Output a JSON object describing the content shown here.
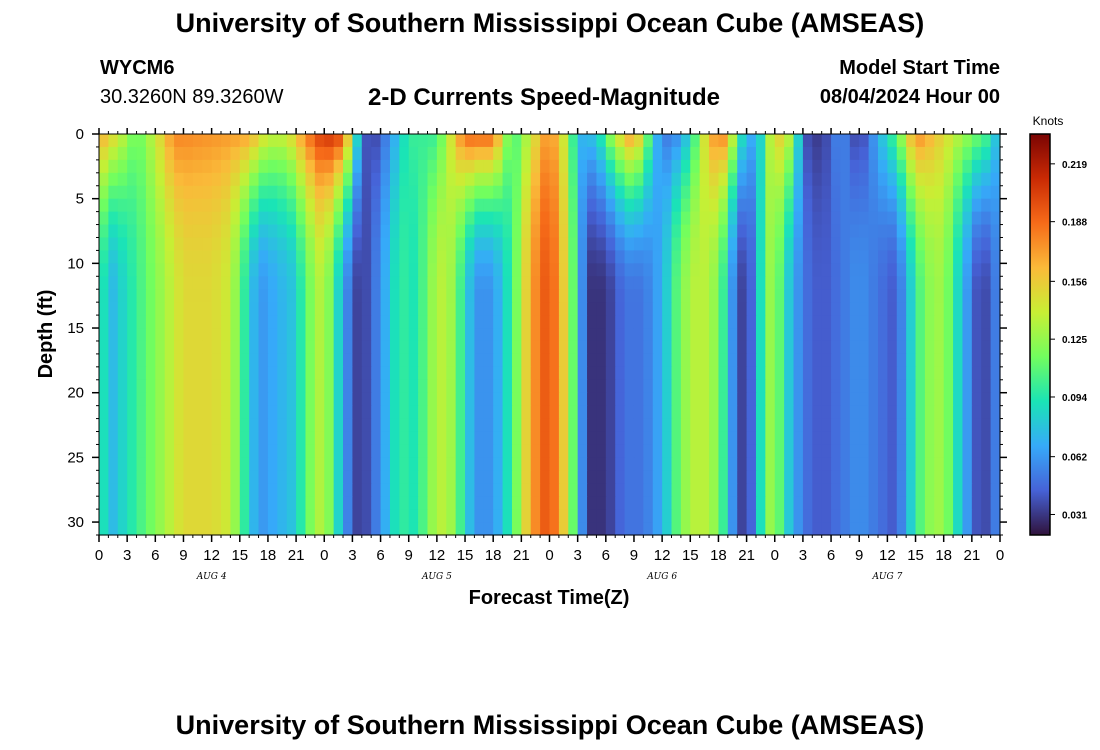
{
  "header": {
    "title": "University of Southern Mississippi Ocean Cube (AMSEAS)",
    "station": "WYCM6",
    "coords": "30.3260N  89.3260W",
    "subtitle": "2-D Currents Speed-Magnitude",
    "start_label": "Model Start Time",
    "start_value": "08/04/2024 Hour 00",
    "footer_title": "University of Southern Mississippi Ocean Cube (AMSEAS)"
  },
  "chart_data": {
    "type": "heatmap",
    "title": "2-D Currents Speed-Magnitude",
    "xlabel": "Forecast Time(Z)",
    "ylabel": "Depth (ft)",
    "x_range_hours": [
      0,
      96
    ],
    "x_tick_labels": [
      "0",
      "3",
      "6",
      "9",
      "12",
      "15",
      "18",
      "21",
      "0",
      "3",
      "6",
      "9",
      "12",
      "15",
      "18",
      "21",
      "0",
      "3",
      "6",
      "9",
      "12",
      "15",
      "18",
      "21",
      "0",
      "3",
      "6",
      "9",
      "12",
      "15",
      "18",
      "21",
      "0"
    ],
    "day_labels": [
      {
        "label": "AUG 4",
        "hour": 12
      },
      {
        "label": "AUG 5",
        "hour": 36
      },
      {
        "label": "AUG 6",
        "hour": 60
      },
      {
        "label": "AUG 7",
        "hour": 84
      }
    ],
    "y_range_ft": [
      0,
      31
    ],
    "y_ticks": [
      0,
      5,
      10,
      15,
      20,
      25,
      30
    ],
    "colorbar": {
      "unit": "Knots",
      "range": [
        0.02,
        0.235
      ],
      "ticks": [
        0.031,
        0.062,
        0.094,
        0.125,
        0.156,
        0.188,
        0.219
      ],
      "tick_labels": [
        "0.031",
        "0.062",
        "0.094",
        "0.125",
        "0.156",
        "0.188",
        "0.219"
      ],
      "colors": [
        "#30123b",
        "#4662d7",
        "#36aaf9",
        "#1ae4b6",
        "#72fe5e",
        "#c8ef34",
        "#faba39",
        "#f66b19",
        "#ca2a04",
        "#7a0403"
      ]
    },
    "surface_profile": [
      {
        "h": 0,
        "v": 0.17
      },
      {
        "h": 2,
        "v": 0.145
      },
      {
        "h": 4,
        "v": 0.11
      },
      {
        "h": 6,
        "v": 0.14
      },
      {
        "h": 8,
        "v": 0.18
      },
      {
        "h": 12,
        "v": 0.175
      },
      {
        "h": 16,
        "v": 0.17
      },
      {
        "h": 18,
        "v": 0.14
      },
      {
        "h": 20,
        "v": 0.14
      },
      {
        "h": 22,
        "v": 0.18
      },
      {
        "h": 24,
        "v": 0.21
      },
      {
        "h": 26,
        "v": 0.2
      },
      {
        "h": 28,
        "v": 0.05
      },
      {
        "h": 29,
        "v": 0.03
      },
      {
        "h": 31,
        "v": 0.06
      },
      {
        "h": 33,
        "v": 0.1
      },
      {
        "h": 36,
        "v": 0.1
      },
      {
        "h": 37,
        "v": 0.13
      },
      {
        "h": 39,
        "v": 0.19
      },
      {
        "h": 42,
        "v": 0.19
      },
      {
        "h": 44,
        "v": 0.1
      },
      {
        "h": 46,
        "v": 0.14
      },
      {
        "h": 48,
        "v": 0.18
      },
      {
        "h": 50,
        "v": 0.13
      },
      {
        "h": 51,
        "v": 0.07
      },
      {
        "h": 53,
        "v": 0.08
      },
      {
        "h": 55,
        "v": 0.14
      },
      {
        "h": 57,
        "v": 0.18
      },
      {
        "h": 59,
        "v": 0.09
      },
      {
        "h": 60,
        "v": 0.05
      },
      {
        "h": 62,
        "v": 0.06
      },
      {
        "h": 64,
        "v": 0.12
      },
      {
        "h": 65,
        "v": 0.17
      },
      {
        "h": 67,
        "v": 0.18
      },
      {
        "h": 68,
        "v": 0.1
      },
      {
        "h": 70,
        "v": 0.06
      },
      {
        "h": 72,
        "v": 0.16
      },
      {
        "h": 74,
        "v": 0.13
      },
      {
        "h": 75,
        "v": 0.04
      },
      {
        "h": 77,
        "v": 0.03
      },
      {
        "h": 79,
        "v": 0.06
      },
      {
        "h": 81,
        "v": 0.03
      },
      {
        "h": 83,
        "v": 0.07
      },
      {
        "h": 85,
        "v": 0.11
      },
      {
        "h": 87,
        "v": 0.18
      },
      {
        "h": 89,
        "v": 0.16
      },
      {
        "h": 91,
        "v": 0.14
      },
      {
        "h": 93,
        "v": 0.12
      },
      {
        "h": 95,
        "v": 0.1
      },
      {
        "h": 96,
        "v": 0.06
      }
    ],
    "bottom_profile": [
      {
        "h": 0,
        "v": 0.11
      },
      {
        "h": 1,
        "v": 0.07
      },
      {
        "h": 3,
        "v": 0.09
      },
      {
        "h": 5,
        "v": 0.11
      },
      {
        "h": 7,
        "v": 0.13
      },
      {
        "h": 9,
        "v": 0.15
      },
      {
        "h": 12,
        "v": 0.15
      },
      {
        "h": 14,
        "v": 0.14
      },
      {
        "h": 15,
        "v": 0.11
      },
      {
        "h": 17,
        "v": 0.06
      },
      {
        "h": 19,
        "v": 0.07
      },
      {
        "h": 21,
        "v": 0.08
      },
      {
        "h": 22,
        "v": 0.11
      },
      {
        "h": 24,
        "v": 0.14
      },
      {
        "h": 25,
        "v": 0.1
      },
      {
        "h": 27,
        "v": 0.04
      },
      {
        "h": 28,
        "v": 0.03
      },
      {
        "h": 30,
        "v": 0.06
      },
      {
        "h": 32,
        "v": 0.1
      },
      {
        "h": 34,
        "v": 0.09
      },
      {
        "h": 35,
        "v": 0.12
      },
      {
        "h": 37,
        "v": 0.14
      },
      {
        "h": 39,
        "v": 0.09
      },
      {
        "h": 40,
        "v": 0.06
      },
      {
        "h": 42,
        "v": 0.06
      },
      {
        "h": 44,
        "v": 0.1
      },
      {
        "h": 46,
        "v": 0.17
      },
      {
        "h": 48,
        "v": 0.2
      },
      {
        "h": 50,
        "v": 0.14
      },
      {
        "h": 52,
        "v": 0.03
      },
      {
        "h": 54,
        "v": 0.03
      },
      {
        "h": 56,
        "v": 0.05
      },
      {
        "h": 58,
        "v": 0.05
      },
      {
        "h": 60,
        "v": 0.07
      },
      {
        "h": 62,
        "v": 0.12
      },
      {
        "h": 64,
        "v": 0.14
      },
      {
        "h": 66,
        "v": 0.12
      },
      {
        "h": 68,
        "v": 0.04
      },
      {
        "h": 69,
        "v": 0.03
      },
      {
        "h": 70,
        "v": 0.06
      },
      {
        "h": 71,
        "v": 0.12
      },
      {
        "h": 72,
        "v": 0.13
      },
      {
        "h": 73,
        "v": 0.09
      },
      {
        "h": 75,
        "v": 0.05
      },
      {
        "h": 77,
        "v": 0.04
      },
      {
        "h": 79,
        "v": 0.05
      },
      {
        "h": 81,
        "v": 0.06
      },
      {
        "h": 83,
        "v": 0.05
      },
      {
        "h": 85,
        "v": 0.04
      },
      {
        "h": 86,
        "v": 0.07
      },
      {
        "h": 88,
        "v": 0.12
      },
      {
        "h": 90,
        "v": 0.13
      },
      {
        "h": 91,
        "v": 0.1
      },
      {
        "h": 93,
        "v": 0.05
      },
      {
        "h": 94,
        "v": 0.03
      },
      {
        "h": 96,
        "v": 0.06
      }
    ]
  }
}
